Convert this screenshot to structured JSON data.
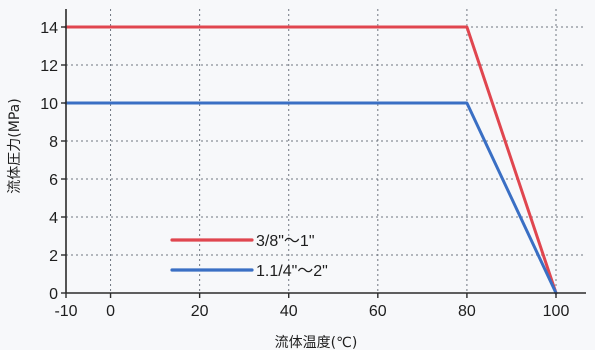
{
  "chart_data": {
    "type": "line",
    "title": "",
    "xlabel": "流体温度(℃)",
    "ylabel": "流体圧力(MPa)",
    "xlim": [
      -10,
      100
    ],
    "ylim": [
      0,
      14
    ],
    "xticks": [
      -10,
      0,
      20,
      40,
      60,
      80,
      100
    ],
    "yticks": [
      0,
      2,
      4,
      6,
      8,
      10,
      12,
      14
    ],
    "grid": true,
    "legend_position": "bottom-left",
    "series": [
      {
        "name": "3/8\"〜1\"",
        "color": "#e0464f",
        "x": [
          -10,
          80,
          100
        ],
        "y": [
          14,
          14,
          0
        ]
      },
      {
        "name": "1.1/4\"〜2\"",
        "color": "#3a6fc4",
        "x": [
          -10,
          80,
          100
        ],
        "y": [
          10,
          10,
          0
        ]
      }
    ]
  }
}
